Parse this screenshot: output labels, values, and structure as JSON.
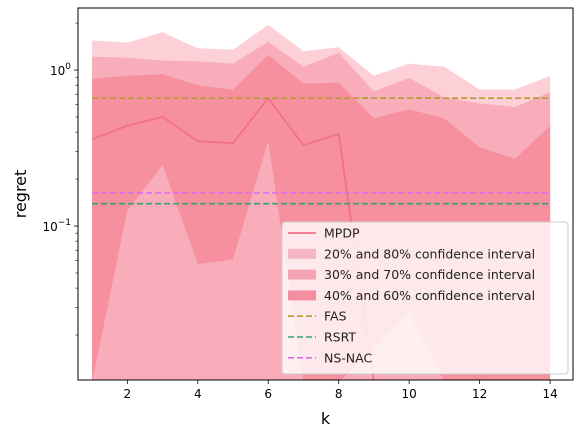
{
  "chart_data": {
    "type": "line",
    "xlabel": "k",
    "ylabel": "regret",
    "yscale": "log",
    "xlim": [
      0.6,
      14.65
    ],
    "ylim": [
      0.0103,
      2.5
    ],
    "x_ticks": [
      2,
      4,
      6,
      8,
      10,
      12,
      14
    ],
    "y_ticks": [
      {
        "value": 0.1,
        "base": "10",
        "exp": "−1"
      },
      {
        "value": 1.0,
        "base": "10",
        "exp": "0"
      }
    ],
    "x": [
      1,
      2,
      3,
      4,
      5,
      6,
      7,
      8,
      9,
      10,
      11,
      12,
      13,
      14
    ],
    "series": [
      {
        "name": "MPDP",
        "color": "#f2708a",
        "values": [
          0.36,
          0.44,
          0.5,
          0.35,
          0.34,
          0.66,
          0.33,
          0.39,
          0.01,
          0.01,
          0.01,
          0.01,
          0.01,
          0.01
        ]
      }
    ],
    "bands": [
      {
        "name": "20% and 80% confidence interval",
        "color": "#fdd0d8",
        "lower": [
          0.013,
          0.12,
          0.24,
          0.01,
          0.01,
          0.34,
          0.01,
          0.01,
          0.01,
          0.01,
          0.01,
          0.01,
          0.01,
          0.01
        ],
        "upper": [
          1.55,
          1.5,
          1.75,
          1.38,
          1.35,
          1.95,
          1.32,
          1.4,
          0.92,
          1.1,
          1.05,
          0.75,
          0.75,
          0.92
        ]
      },
      {
        "name": "30% and 70% confidence interval",
        "color": "#f9adbb",
        "lower": [
          0.01,
          0.01,
          0.01,
          0.01,
          0.01,
          0.01,
          0.01,
          0.01,
          0.01,
          0.01,
          0.01,
          0.01,
          0.01,
          0.01
        ],
        "upper": [
          1.22,
          1.2,
          1.15,
          1.14,
          1.1,
          1.52,
          1.05,
          1.29,
          0.73,
          0.89,
          0.67,
          0.61,
          0.58,
          0.72
        ]
      },
      {
        "name": "40% and 60% confidence interval",
        "color": "#f6909f",
        "lower": [
          0.01,
          0.125,
          0.245,
          0.057,
          0.061,
          0.35,
          0.01,
          0.01,
          0.016,
          0.028,
          0.01,
          0.01,
          0.01,
          0.01
        ],
        "upper": [
          0.88,
          0.92,
          0.94,
          0.8,
          0.75,
          1.25,
          0.82,
          0.83,
          0.49,
          0.56,
          0.49,
          0.32,
          0.27,
          0.44
        ]
      }
    ],
    "hlines": [
      {
        "name": "FAS",
        "value": 0.66,
        "color": "#b59a32"
      },
      {
        "name": "RSRT",
        "value": 0.139,
        "color": "#32a46f"
      },
      {
        "name": "NS-NAC",
        "value": 0.163,
        "color": "#dc6ff0"
      }
    ],
    "legend": {
      "placement": "lower-right",
      "entries": [
        {
          "label": "MPDP",
          "kind": "line",
          "color": "#f2708a"
        },
        {
          "label": "20% and 80% confidence interval",
          "kind": "patch",
          "color": "#f4b6c2"
        },
        {
          "label": "30% and 70% confidence interval",
          "kind": "patch",
          "color": "#f4a3b3"
        },
        {
          "label": "40% and 60% confidence interval",
          "kind": "patch",
          "color": "#f38ea0"
        },
        {
          "label": "FAS",
          "kind": "dashed",
          "color": "#b59a32"
        },
        {
          "label": "RSRT",
          "kind": "dashed",
          "color": "#32a46f"
        },
        {
          "label": "NS-NAC",
          "kind": "dashed",
          "color": "#dc6ff0"
        }
      ]
    }
  }
}
